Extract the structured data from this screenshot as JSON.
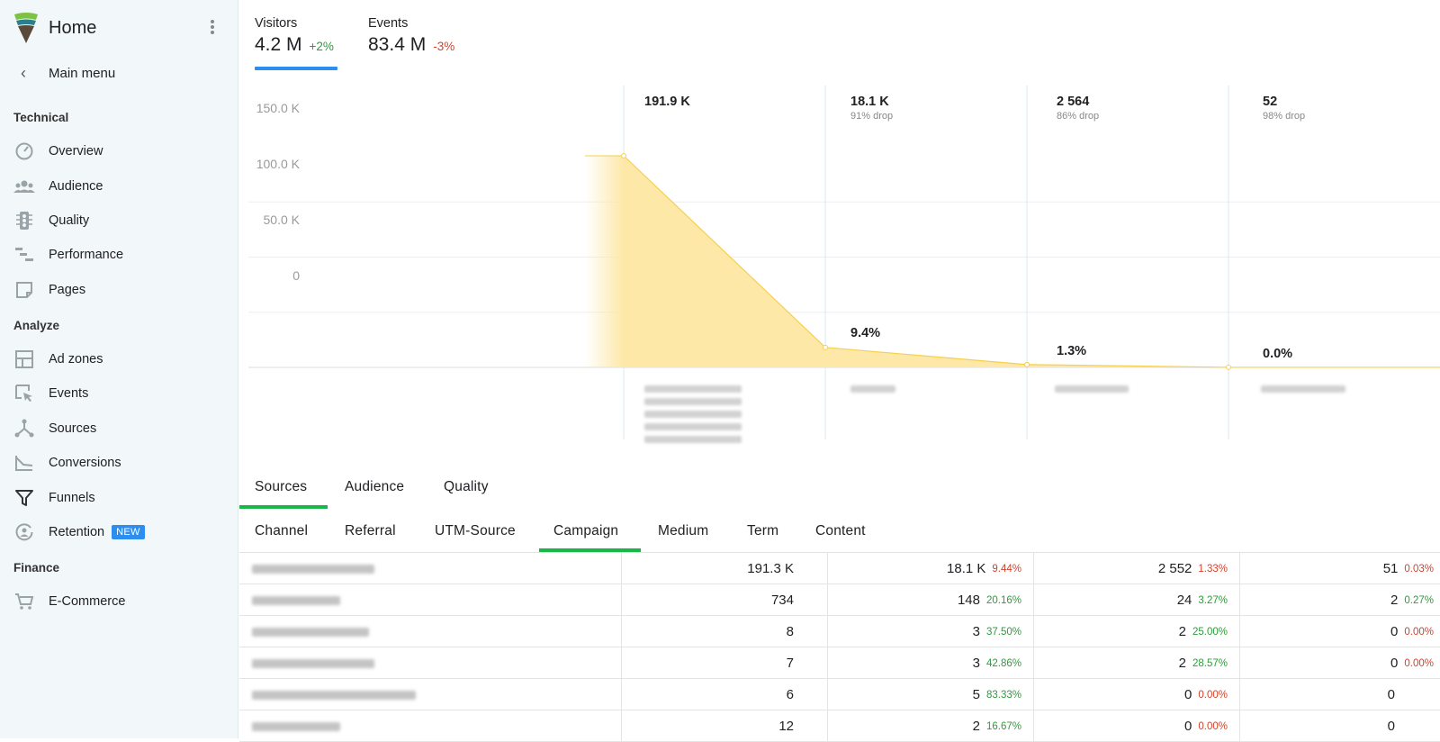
{
  "app": {
    "title": "Home",
    "main_menu_label": "Main menu"
  },
  "sidebar": {
    "sections": [
      {
        "label": "Technical"
      },
      {
        "label": "Analyze"
      },
      {
        "label": "Finance"
      }
    ],
    "items": [
      {
        "label": "Overview",
        "icon": "speedometer-icon"
      },
      {
        "label": "Audience",
        "icon": "people-icon"
      },
      {
        "label": "Quality",
        "icon": "traffic-light-icon"
      },
      {
        "label": "Performance",
        "icon": "waterfall-icon"
      },
      {
        "label": "Pages",
        "icon": "page-icon"
      },
      {
        "label": "Ad zones",
        "icon": "layout-icon"
      },
      {
        "label": "Events",
        "icon": "cursor-click-icon"
      },
      {
        "label": "Sources",
        "icon": "source-fork-icon"
      },
      {
        "label": "Conversions",
        "icon": "conversion-chart-icon"
      },
      {
        "label": "Funnels",
        "icon": "funnel-icon"
      },
      {
        "label": "Retention",
        "icon": "retention-user-icon",
        "badge": "NEW"
      },
      {
        "label": "E-Commerce",
        "icon": "cart-icon"
      }
    ]
  },
  "kpis": [
    {
      "label": "Visitors",
      "value": "4.2 M",
      "change": "+2%",
      "trend": "up",
      "selected": true
    },
    {
      "label": "Events",
      "value": "83.4 M",
      "change": "-3%",
      "trend": "down",
      "selected": false
    }
  ],
  "chart_data": {
    "type": "area",
    "series": [
      {
        "values": [
          191900,
          18100,
          2564,
          52
        ]
      }
    ],
    "steps": [
      {
        "count": "191.9 K",
        "drop": ""
      },
      {
        "count": "18.1 K",
        "drop": "91% drop",
        "pct": "9.4%"
      },
      {
        "count": "2 564",
        "drop": "86% drop",
        "pct": "1.3%"
      },
      {
        "count": "52",
        "drop": "98% drop",
        "pct": "0.0%"
      }
    ],
    "yticks": [
      "0",
      "50.0 K",
      "100.0 K",
      "150.0 K"
    ],
    "ylim": [
      0,
      191900
    ],
    "fill_color": "#fde8a8",
    "line_color": "#f6cf4e"
  },
  "tabs_primary": [
    {
      "label": "Sources",
      "active": true
    },
    {
      "label": "Audience",
      "active": false
    },
    {
      "label": "Quality",
      "active": false
    }
  ],
  "tabs_secondary": [
    {
      "label": "Channel",
      "active": false
    },
    {
      "label": "Referral",
      "active": false
    },
    {
      "label": "UTM-Source",
      "active": false
    },
    {
      "label": "Campaign",
      "active": true
    },
    {
      "label": "Medium",
      "active": false
    },
    {
      "label": "Term",
      "active": false
    },
    {
      "label": "Content",
      "active": false
    }
  ],
  "table": {
    "rows": [
      {
        "c1": "191.3 K",
        "c2": "18.1 K",
        "p2": "9.44%",
        "t2": "down",
        "c3": "2 552",
        "p3": "1.33%",
        "t3": "down",
        "c4": "51",
        "p4": "0.03%",
        "t4": "down"
      },
      {
        "c1": "734",
        "c2": "148",
        "p2": "20.16%",
        "t2": "up",
        "c3": "24",
        "p3": "3.27%",
        "t3": "up",
        "c4": "2",
        "p4": "0.27%",
        "t4": "up"
      },
      {
        "c1": "8",
        "c2": "3",
        "p2": "37.50%",
        "t2": "up",
        "c3": "2",
        "p3": "25.00%",
        "t3": "up",
        "c4": "0",
        "p4": "0.00%",
        "t4": "down"
      },
      {
        "c1": "7",
        "c2": "3",
        "p2": "42.86%",
        "t2": "up",
        "c3": "2",
        "p3": "28.57%",
        "t3": "up",
        "c4": "0",
        "p4": "0.00%",
        "t4": "down"
      },
      {
        "c1": "6",
        "c2": "5",
        "p2": "83.33%",
        "t2": "up",
        "c3": "0",
        "p3": "0.00%",
        "t3": "down",
        "c4": "0",
        "p4": "",
        "t4": "down"
      },
      {
        "c1": "12",
        "c2": "2",
        "p2": "16.67%",
        "t2": "up",
        "c3": "0",
        "p3": "0.00%",
        "t3": "down",
        "c4": "0",
        "p4": "",
        "t4": "down"
      }
    ]
  },
  "colors": {
    "accent_blue": "#2d8ef0",
    "accent_green": "#17b847",
    "up": "#2e9b3c",
    "down": "#d2422b",
    "sidebar_bg": "#f2f7f9"
  }
}
